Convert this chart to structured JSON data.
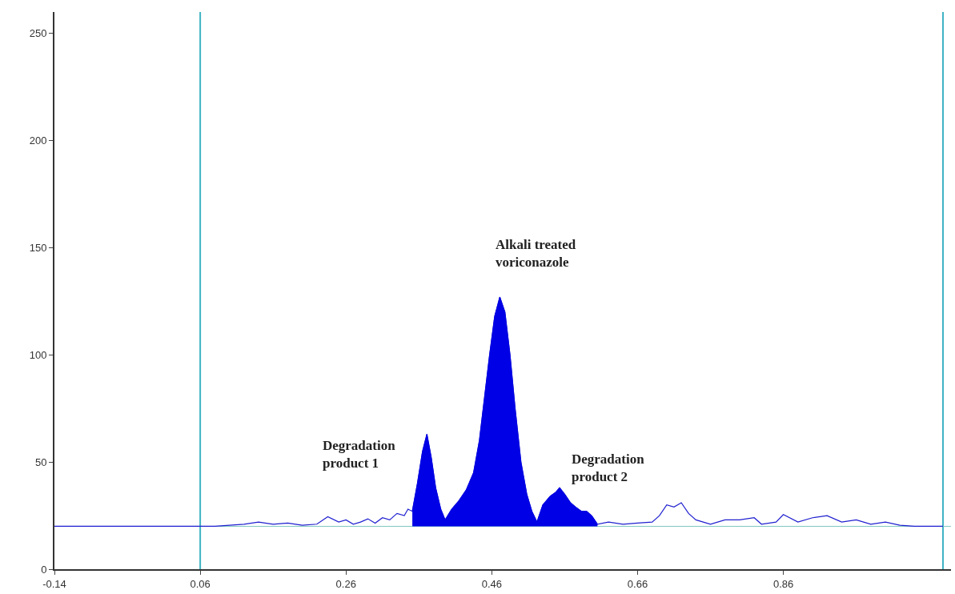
{
  "chart_data": {
    "type": "line",
    "xlim": [
      -0.14,
      1.09
    ],
    "ylim": [
      0,
      260
    ],
    "xticks": [
      -0.14,
      0.06,
      0.26,
      0.46,
      0.66,
      0.86
    ],
    "yticks": [
      0,
      50,
      100,
      150,
      200,
      250
    ],
    "grid": false,
    "marker": "none",
    "line_style": "solid",
    "series": [
      {
        "color": "#1f1fd0",
        "x": [
          -0.14,
          0.06,
          0.08,
          0.1,
          0.12,
          0.14,
          0.16,
          0.18,
          0.2,
          0.22,
          0.235,
          0.25,
          0.26,
          0.27,
          0.28,
          0.29,
          0.3,
          0.31,
          0.32,
          0.33,
          0.34,
          0.345,
          0.351,
          0.358,
          0.365,
          0.371,
          0.377,
          0.383,
          0.39,
          0.396,
          0.405,
          0.415,
          0.425,
          0.435,
          0.443,
          0.45,
          0.457,
          0.464,
          0.471,
          0.478,
          0.485,
          0.492,
          0.5,
          0.508,
          0.515,
          0.522,
          0.53,
          0.54,
          0.548,
          0.553,
          0.56,
          0.568,
          0.575,
          0.583,
          0.59,
          0.597,
          0.605,
          0.62,
          0.64,
          0.66,
          0.68,
          0.69,
          0.7,
          0.71,
          0.72,
          0.73,
          0.74,
          0.76,
          0.78,
          0.8,
          0.82,
          0.83,
          0.85,
          0.86,
          0.88,
          0.9,
          0.92,
          0.94,
          0.96,
          0.98,
          1.0,
          1.02,
          1.04,
          1.079
        ],
        "values": [
          20,
          20,
          20,
          20.5,
          21,
          22,
          21,
          21.5,
          20.5,
          21,
          24.5,
          22,
          23,
          21,
          22,
          23.5,
          21.5,
          24,
          23,
          26,
          25,
          28,
          27,
          40,
          55,
          63,
          52,
          38,
          28,
          23,
          28,
          32,
          37,
          45,
          60,
          80,
          100,
          118,
          127,
          120,
          100,
          75,
          50,
          35,
          27,
          22,
          30,
          34,
          36,
          38,
          35,
          31,
          29,
          27,
          27,
          25,
          21,
          22,
          21,
          21.5,
          22,
          25,
          30,
          29,
          31,
          26,
          23,
          21,
          23,
          23,
          24,
          21,
          22,
          25.5,
          22,
          24,
          25,
          22,
          23,
          21,
          22,
          20.5,
          20,
          20
        ]
      },
      {
        "type": "area",
        "color": "#0000e6",
        "x": [
          0.351,
          0.358,
          0.365,
          0.371,
          0.377,
          0.383,
          0.39,
          0.396,
          0.405,
          0.415,
          0.425,
          0.435,
          0.443,
          0.45,
          0.457,
          0.464,
          0.471,
          0.478,
          0.485,
          0.492,
          0.5,
          0.508,
          0.515,
          0.522,
          0.53,
          0.54,
          0.548,
          0.553,
          0.56,
          0.568,
          0.575,
          0.583,
          0.59,
          0.597,
          0.605
        ],
        "values": [
          27,
          40,
          55,
          63,
          52,
          38,
          28,
          23,
          28,
          32,
          37,
          45,
          60,
          80,
          100,
          118,
          127,
          120,
          100,
          75,
          50,
          35,
          27,
          22,
          30,
          34,
          36,
          38,
          35,
          31,
          29,
          27,
          27,
          25,
          21
        ]
      }
    ],
    "ref_lines": [
      {
        "axis": "x",
        "value": 0.06,
        "color": "#3fb3c3"
      },
      {
        "axis": "x",
        "value": 1.079,
        "color": "#3fb3c3"
      },
      {
        "axis": "y",
        "value": 20,
        "color": "#7fc8c0"
      }
    ],
    "annotations": [
      {
        "text": "Degradation\nproduct 1",
        "x": 0.371,
        "y": 63
      },
      {
        "text": "Alkali treated\nvoriconazole",
        "x": 0.471,
        "y": 127
      },
      {
        "text": "Degradation\nproduct 2",
        "x": 0.553,
        "y": 38
      }
    ]
  }
}
